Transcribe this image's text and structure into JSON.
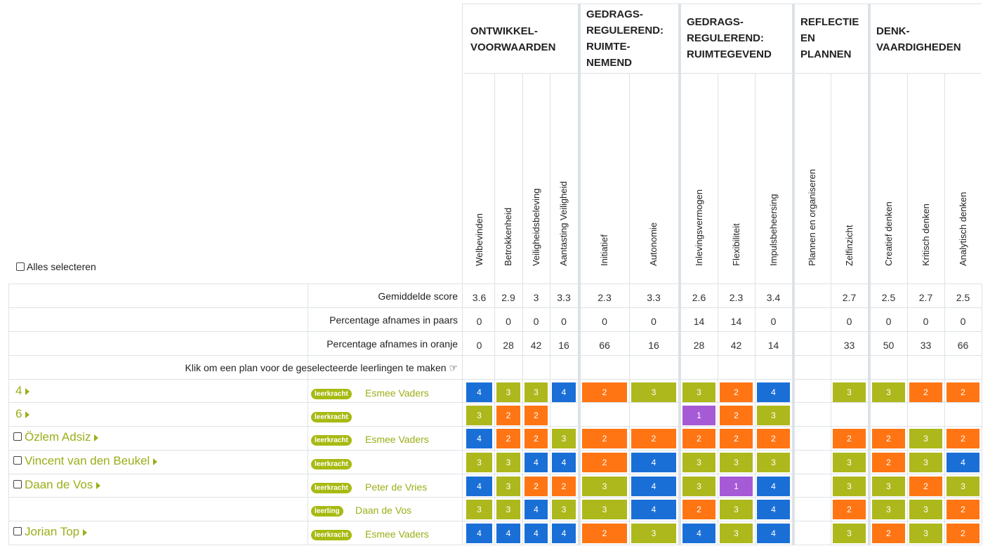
{
  "select_all_label": "Alles selecteren",
  "groups": [
    "ONTWIKKEL-\nVOORWAARDEN",
    "GEDRAGS-\nREGULEREND:\nRUIMTE-\nNEMEND",
    "GEDRAGS-\nREGULEREND:\nRUIMTEGEVEND",
    "REFLECTIE\nEN\nPLANNEN",
    "DENK-\nVAARDIGHEDEN"
  ],
  "columns": [
    "Welbevinden",
    "Betrokkenheid",
    "Veiligheidsbeleving",
    "Aantasting Veiligheid",
    "Initiatief",
    "Autonomie",
    "Inlevingsvermogen",
    "Flexibiliteit",
    "Impulsbeheersing",
    "Plannen en organiseren",
    "Zelfinzicht",
    "Creatief denken",
    "Kritisch denken",
    "Analytisch denken"
  ],
  "summary_rows": [
    {
      "label": "Gemiddelde score",
      "values": [
        "3.6",
        "2.9",
        "3",
        "3.3",
        "2.3",
        "3.3",
        "2.6",
        "2.3",
        "3.4",
        "",
        "2.7",
        "2.5",
        "2.7",
        "2.5"
      ]
    },
    {
      "label": "Percentage afnames in paars",
      "values": [
        "0",
        "0",
        "0",
        "0",
        "0",
        "0",
        "14",
        "14",
        "0",
        "",
        "0",
        "0",
        "0",
        "0"
      ]
    },
    {
      "label": "Percentage afnames in oranje",
      "values": [
        "0",
        "28",
        "42",
        "16",
        "66",
        "16",
        "28",
        "42",
        "14",
        "",
        "33",
        "50",
        "33",
        "66"
      ]
    }
  ],
  "plan_row": {
    "label": "Klik om een plan voor de geselecteerde leerlingen te maken",
    "icon": "pointing-hand-icon"
  },
  "rows": [
    {
      "name": "4",
      "type": "group",
      "checkbox": false,
      "badge": "leerkracht",
      "teacher": "Esmee Vaders",
      "scores": [
        "4",
        "3",
        "3",
        "4",
        "2",
        "3",
        "3",
        "2",
        "4",
        "",
        "3",
        "3",
        "2",
        "2"
      ]
    },
    {
      "name": "6",
      "type": "group",
      "checkbox": false,
      "badge": "leerkracht",
      "teacher": "",
      "scores": [
        "3",
        "2",
        "2",
        "",
        "",
        "",
        "1",
        "2",
        "3",
        "",
        "",
        "",
        "",
        ""
      ]
    },
    {
      "name": "Özlem Adsiz",
      "type": "student",
      "checkbox": true,
      "badge": "leerkracht",
      "teacher": "Esmee Vaders",
      "scores": [
        "4",
        "2",
        "2",
        "3",
        "2",
        "2",
        "2",
        "2",
        "2",
        "",
        "2",
        "2",
        "3",
        "2"
      ]
    },
    {
      "name": "Vincent van den Beukel",
      "type": "student",
      "checkbox": true,
      "badge": "leerkracht",
      "teacher": "",
      "scores": [
        "3",
        "3",
        "4",
        "4",
        "2",
        "4",
        "3",
        "3",
        "3",
        "",
        "3",
        "2",
        "3",
        "4"
      ]
    },
    {
      "name": "Daan de Vos",
      "type": "student",
      "checkbox": true,
      "badge": "leerkracht",
      "teacher": "Peter de Vries",
      "scores": [
        "4",
        "3",
        "2",
        "2",
        "3",
        "4",
        "3",
        "1",
        "4",
        "",
        "3",
        "3",
        "2",
        "3"
      ]
    },
    {
      "name": "",
      "type": "sub",
      "checkbox": false,
      "badge": "leerling",
      "teacher": "Daan de Vos",
      "scores": [
        "3",
        "3",
        "4",
        "3",
        "3",
        "4",
        "2",
        "3",
        "4",
        "",
        "2",
        "3",
        "3",
        "2"
      ]
    },
    {
      "name": "Jorian Top",
      "type": "student",
      "checkbox": true,
      "badge": "leerkracht",
      "teacher": "Esmee Vaders",
      "scores": [
        "4",
        "4",
        "4",
        "4",
        "2",
        "3",
        "4",
        "3",
        "4",
        "",
        "3",
        "2",
        "3",
        "2"
      ]
    }
  ],
  "colors": {
    "purple": "#a75ad6",
    "orange": "#ff7514",
    "green": "#adb81c",
    "blue": "#1a6fd7",
    "name_green": "#9cae17"
  }
}
